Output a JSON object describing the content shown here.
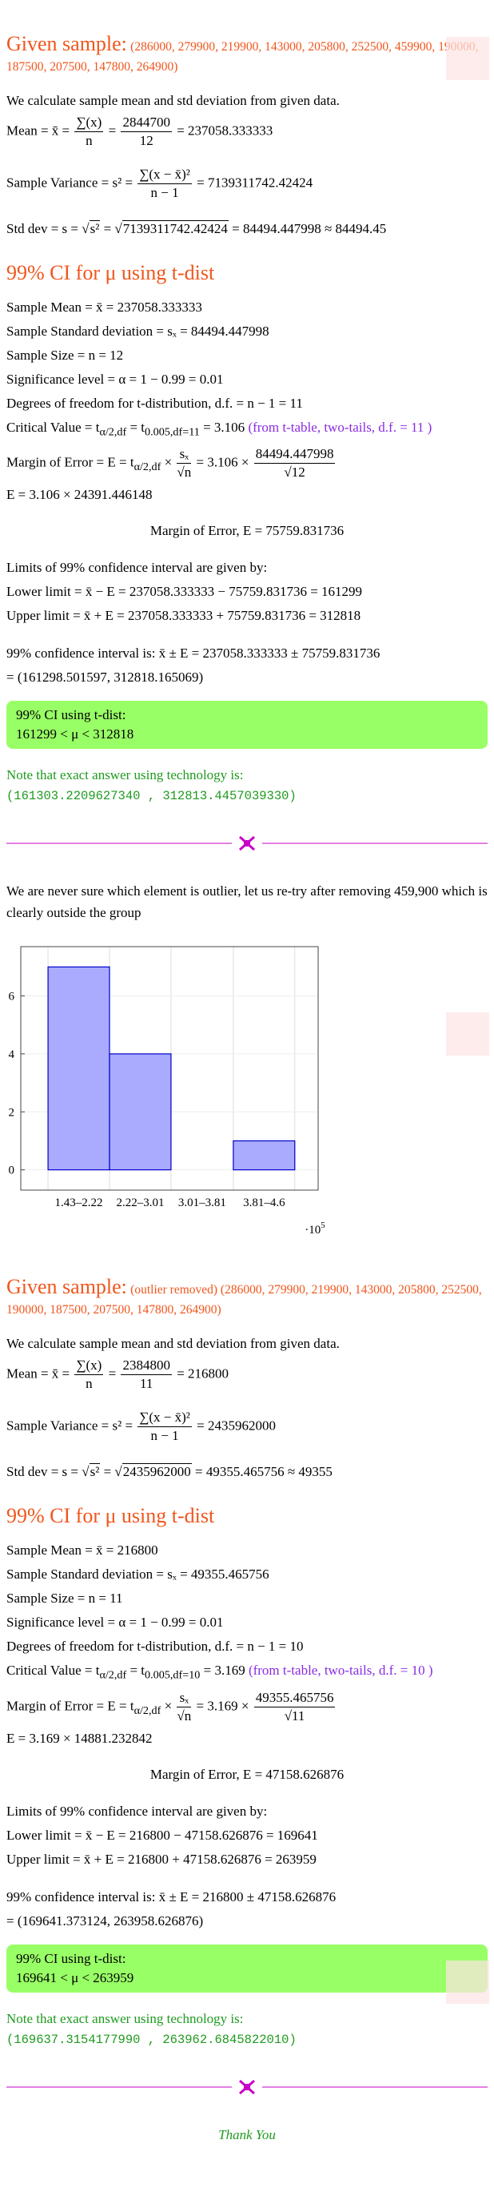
{
  "sections": [
    {
      "given_label": "Given sample:",
      "given_values": "(286000, 279900, 219900, 143000, 205800, 252500, 459900, 190000, 187500, 207500, 147800, 264900)",
      "intro": "We calculate sample mean and std deviation from given data.",
      "mean": [
        "Mean = x̄ = ",
        {
          "num": "∑(x)",
          "den": "n"
        },
        " = ",
        {
          "num": "2844700",
          "den": "12"
        },
        " = 237058.333333"
      ],
      "variance": [
        "Sample Variance = s² = ",
        {
          "num": "∑(x − x̄)²",
          "den": "n − 1"
        },
        " = 7139311742.42424"
      ],
      "std": [
        "Std dev = s = ",
        {
          "sqrt": "s²"
        },
        " = ",
        {
          "sqrt": "7139311742.42424"
        },
        " = 84494.447998 ≈ 84494.45"
      ],
      "ci_heading": "99% CI for μ using t-dist",
      "stats": [
        "Sample Mean = x̄ = 237058.333333",
        "Sample Standard deviation = sₓ = 84494.447998",
        "Sample Size = n = 12",
        "Significance level = α = 1 − 0.99 = 0.01",
        "Degrees of freedom for t-distribution, d.f. = n − 1 = 11"
      ],
      "critical": [
        "Critical Value = t",
        {
          "sub": "α/2,df"
        },
        " = t",
        {
          "sub": "0.005,df=11"
        },
        " = 3.106 ",
        {
          "note": "(from t-table, two-tails, d.f. = 11 )"
        }
      ],
      "margin": [
        "Margin of Error = E = t",
        {
          "sub": "α/2,df"
        },
        " × ",
        {
          "num": "sₓ",
          "den": "√n"
        },
        " = 3.106 × ",
        {
          "num": "84494.447998",
          "den": "√12"
        }
      ],
      "e_line": "E = 3.106 × 24391.446148",
      "e_final": "Margin of Error, E = 75759.831736",
      "limits": [
        "Limits of 99% confidence interval are given by:",
        "Lower limit = x̄ − E = 237058.333333 − 75759.831736 = 161299",
        "Upper limit = x̄ + E = 237058.333333 + 75759.831736 = 312818"
      ],
      "ci_lines": [
        "99% confidence interval is: x̄ ± E = 237058.333333 ± 75759.831736",
        "= (161298.501597, 312818.165069)"
      ],
      "box_title": "99% CI using t-dist:",
      "box_value": "161299 < μ < 312818",
      "note": "Note that exact answer using technology is:",
      "note_value": "(161303.2209627340 , 312813.4457039330)"
    },
    {
      "given_label": "Given sample:",
      "given_values": "(outlier removed) (286000, 279900, 219900, 143000, 205800, 252500, 190000, 187500, 207500, 147800, 264900)",
      "intro": "We calculate sample mean and std deviation from given data.",
      "mean": [
        "Mean = x̄ = ",
        {
          "num": "∑(x)",
          "den": "n"
        },
        " = ",
        {
          "num": "2384800",
          "den": "11"
        },
        " = 216800"
      ],
      "variance": [
        "Sample Variance = s² = ",
        {
          "num": "∑(x − x̄)²",
          "den": "n − 1"
        },
        " = 2435962000"
      ],
      "std": [
        "Std dev = s = ",
        {
          "sqrt": "s²"
        },
        " = ",
        {
          "sqrt": "2435962000"
        },
        " = 49355.465756 ≈ 49355"
      ],
      "ci_heading": "99% CI for μ using t-dist",
      "stats": [
        "Sample Mean = x̄ = 216800",
        "Sample Standard deviation = sₓ = 49355.465756",
        "Sample Size = n = 11",
        "Significance level = α = 1 − 0.99 = 0.01",
        "Degrees of freedom for t-distribution, d.f. = n − 1 = 10"
      ],
      "critical": [
        "Critical Value = t",
        {
          "sub": "α/2,df"
        },
        " = t",
        {
          "sub": "0.005,df=10"
        },
        " = 3.169 ",
        {
          "note": "(from t-table, two-tails, d.f. = 10 )"
        }
      ],
      "margin": [
        "Margin of Error = E = t",
        {
          "sub": "α/2,df"
        },
        " × ",
        {
          "num": "sₓ",
          "den": "√n"
        },
        " = 3.169 × ",
        {
          "num": "49355.465756",
          "den": "√11"
        }
      ],
      "e_line": "E = 3.169 × 14881.232842",
      "e_final": "Margin of Error, E = 47158.626876",
      "limits": [
        "Limits of 99% confidence interval are given by:",
        "Lower limit = x̄ − E = 216800 − 47158.626876 = 169641",
        "Upper limit = x̄ + E = 216800 + 47158.626876 = 263959"
      ],
      "ci_lines": [
        "99% confidence interval is: x̄ ± E = 216800 ± 47158.626876",
        "= (169641.373124, 263958.626876)"
      ],
      "box_title": "99% CI using t-dist:",
      "box_value": "169641 < μ < 263959",
      "note": "Note that exact answer using technology is:",
      "note_value": "(169637.3154177990 , 263962.6845822010)"
    }
  ],
  "outlier_text": "We are never sure which element is outlier, let us re-try after removing 459,900 which is clearly outside the group",
  "chart_data": {
    "type": "histogram",
    "bins": [
      1.43,
      2.22,
      3.01,
      3.81,
      4.6
    ],
    "values": [
      7,
      4,
      0,
      1
    ],
    "categories": [
      "1.43–2.22",
      "2.22–3.01",
      "3.01–3.81",
      "3.81–4.6"
    ],
    "x_multiplier": "·10",
    "x_multiplier_exp": "5",
    "color": "#aaaaff",
    "xlim": [
      1.08,
      4.9
    ],
    "ylim": [
      -0.7,
      7.7
    ],
    "yticks": [
      0,
      2,
      4,
      6
    ],
    "grid": true
  },
  "closing": "Thank You"
}
